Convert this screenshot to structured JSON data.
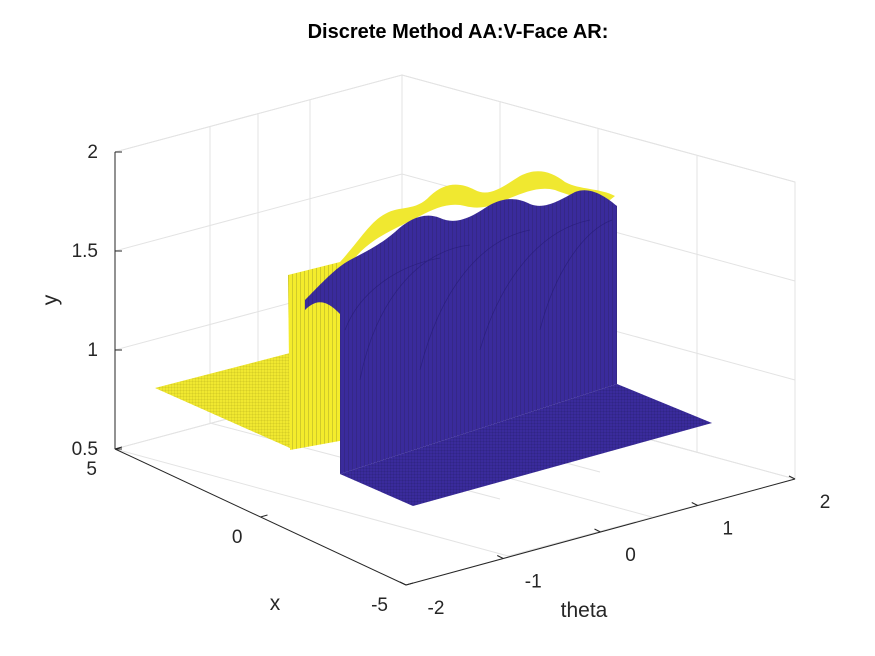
{
  "chart_data": {
    "type": "surface",
    "title": "Discrete Method AA:V-Face AR:",
    "xlabel": "theta",
    "ylabel": "x",
    "zlabel": "y",
    "xlim": [
      -2,
      2
    ],
    "ylim": [
      -5,
      5
    ],
    "zlim": [
      0.5,
      2
    ],
    "xticks": [
      -2,
      -1,
      0,
      1,
      2
    ],
    "yticks": [
      -5,
      0,
      5
    ],
    "zticks": [
      0.5,
      1,
      1.5,
      2
    ],
    "xtick_labels": [
      "-2",
      "-1",
      "0",
      "1",
      "2"
    ],
    "ytick_labels": [
      "-5",
      "0",
      "5"
    ],
    "ztick_labels": [
      "0.5",
      "1",
      "1.5",
      "2"
    ],
    "grid": true,
    "colors": {
      "low": "#f0e830",
      "high": "#3a2b9c",
      "mesh": "#1a1a1a"
    },
    "regions": [
      {
        "name": "low flat region (x > 0)",
        "theta_range": [
          -2,
          2
        ],
        "x_range": [
          0,
          5
        ],
        "value": 0.8
      },
      {
        "name": "raised plateau",
        "theta_range": [
          -1.3,
          2
        ],
        "x_range": [
          -5,
          0
        ],
        "value_range": [
          1.3,
          1.6
        ]
      },
      {
        "name": "low flat region (x < 0)",
        "theta_range": [
          -2,
          2
        ],
        "x_range": [
          -5,
          0
        ],
        "value": 0.8
      }
    ]
  }
}
